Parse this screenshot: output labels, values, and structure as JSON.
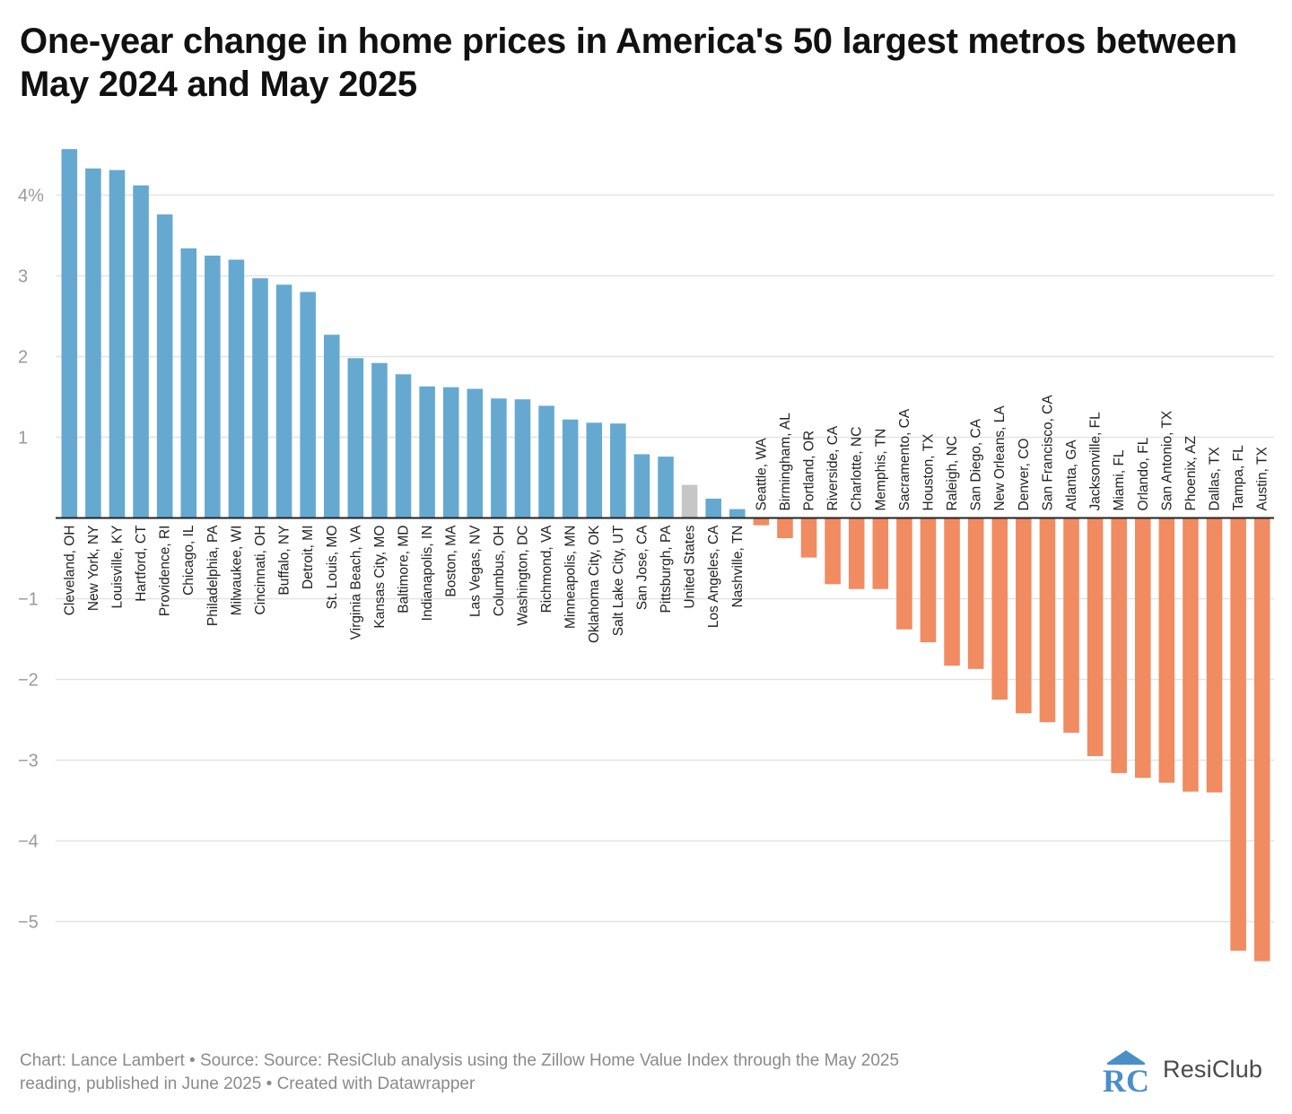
{
  "title": "One-year change in home prices in America's 50 largest metros between May 2024 and May 2025",
  "footer": {
    "line1": "Chart: Lance Lambert • Source: Source: ResiClub analysis using the Zillow Home Value Index through the May 2025",
    "line2": "reading, published in June 2025 • Created with Datawrapper"
  },
  "logo": {
    "text": "ResiClub",
    "mark_letters": "RC"
  },
  "colors": {
    "positive": "#65a9d0",
    "negative": "#f08b62",
    "national": "#c6c6c6",
    "grid": "#e3e3e3",
    "axis": "#222222"
  },
  "chart_data": {
    "type": "bar",
    "ylim": [
      -5.75,
      4.75
    ],
    "yticks": [
      4,
      3,
      2,
      1,
      -1,
      -2,
      -3,
      -4,
      -5
    ],
    "ytick_labels": [
      "4%",
      "3",
      "2",
      "1",
      "−1",
      "−2",
      "−3",
      "−4",
      "−5"
    ],
    "grid": true,
    "highlight_category": "United States",
    "categories": [
      "Cleveland, OH",
      "New York, NY",
      "Louisville, KY",
      "Hartford, CT",
      "Providence, RI",
      "Chicago, IL",
      "Philadelphia, PA",
      "Milwaukee, WI",
      "Cincinnati, OH",
      "Buffalo, NY",
      "Detroit, MI",
      "St. Louis, MO",
      "Virginia Beach, VA",
      "Kansas City, MO",
      "Baltimore, MD",
      "Indianapolis, IN",
      "Boston, MA",
      "Las Vegas, NV",
      "Columbus, OH",
      "Washington, DC",
      "Richmond, VA",
      "Minneapolis, MN",
      "Oklahoma City, OK",
      "Salt Lake City, UT",
      "San Jose, CA",
      "Pittsburgh, PA",
      "United States",
      "Los Angeles, CA",
      "Nashville, TN",
      "Seattle, WA",
      "Birmingham, AL",
      "Portland, OR",
      "Riverside, CA",
      "Charlotte, NC",
      "Memphis, TN",
      "Sacramento, CA",
      "Houston, TX",
      "Raleigh, NC",
      "San Diego, CA",
      "New Orleans, LA",
      "Denver, CO",
      "San Francisco, CA",
      "Atlanta, GA",
      "Jacksonville, FL",
      "Miami, FL",
      "Orlando, FL",
      "San Antonio, TX",
      "Phoenix, AZ",
      "Dallas, TX",
      "Tampa, FL",
      "Austin, TX"
    ],
    "values": [
      4.57,
      4.33,
      4.31,
      4.12,
      3.76,
      3.34,
      3.25,
      3.2,
      2.97,
      2.89,
      2.8,
      2.27,
      1.98,
      1.92,
      1.78,
      1.63,
      1.62,
      1.6,
      1.48,
      1.47,
      1.39,
      1.22,
      1.18,
      1.17,
      0.79,
      0.76,
      0.41,
      0.24,
      0.11,
      -0.09,
      -0.25,
      -0.49,
      -0.82,
      -0.88,
      -0.88,
      -1.38,
      -1.54,
      -1.83,
      -1.87,
      -2.25,
      -2.42,
      -2.53,
      -2.66,
      -2.95,
      -3.16,
      -3.22,
      -3.28,
      -3.39,
      -3.4,
      -5.36,
      -5.49
    ]
  }
}
